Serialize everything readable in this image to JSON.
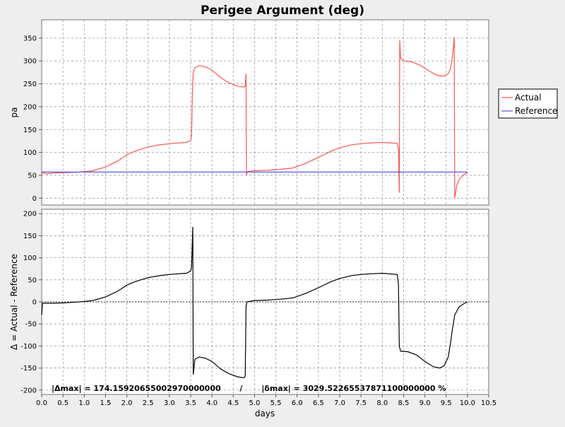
{
  "chart_data": [
    {
      "type": "line",
      "title": "Perigee Argument (deg)",
      "ylabel": "pa",
      "xlabel": "",
      "xlim": [
        0,
        10.5
      ],
      "ylim": [
        -15,
        390
      ],
      "yticks": [
        0,
        50,
        100,
        150,
        200,
        250,
        300,
        350
      ],
      "xticks": [
        0,
        0.5,
        1,
        1.5,
        2,
        2.5,
        3,
        3.5,
        4,
        4.5,
        5,
        5.5,
        6,
        6.5,
        7,
        7.5,
        8,
        8.5,
        9,
        9.5,
        10,
        10.5
      ],
      "grid": true,
      "legend": "right",
      "series": [
        {
          "name": "Actual",
          "color": "#ff5555",
          "points": [
            [
              0,
              50
            ],
            [
              0.02,
              57
            ],
            [
              0.1,
              53
            ],
            [
              0.3,
              55
            ],
            [
              0.6,
              56
            ],
            [
              0.9,
              57
            ],
            [
              1.2,
              60
            ],
            [
              1.5,
              68
            ],
            [
              1.8,
              82
            ],
            [
              2.0,
              95
            ],
            [
              2.2,
              103
            ],
            [
              2.5,
              112
            ],
            [
              2.8,
              117
            ],
            [
              3.1,
              120
            ],
            [
              3.4,
              122
            ],
            [
              3.5,
              126
            ],
            [
              3.52,
              135
            ],
            [
              3.54,
              230
            ],
            [
              3.56,
              275
            ],
            [
              3.6,
              285
            ],
            [
              3.7,
              290
            ],
            [
              3.85,
              287
            ],
            [
              4.0,
              280
            ],
            [
              4.2,
              264
            ],
            [
              4.4,
              252
            ],
            [
              4.6,
              245
            ],
            [
              4.75,
              243
            ],
            [
              4.78,
              245
            ],
            [
              4.8,
              272
            ],
            [
              4.81,
              50
            ],
            [
              4.83,
              58
            ],
            [
              5.0,
              60
            ],
            [
              5.3,
              61
            ],
            [
              5.6,
              63
            ],
            [
              5.9,
              66
            ],
            [
              6.2,
              76
            ],
            [
              6.5,
              89
            ],
            [
              6.8,
              103
            ],
            [
              7.0,
              110
            ],
            [
              7.3,
              117
            ],
            [
              7.6,
              120
            ],
            [
              8.0,
              122
            ],
            [
              8.35,
              120
            ],
            [
              8.38,
              108
            ],
            [
              8.4,
              12
            ],
            [
              8.41,
              345
            ],
            [
              8.43,
              305
            ],
            [
              8.5,
              300
            ],
            [
              8.7,
              298
            ],
            [
              8.9,
              290
            ],
            [
              9.1,
              278
            ],
            [
              9.3,
              268
            ],
            [
              9.45,
              267
            ],
            [
              9.55,
              272
            ],
            [
              9.6,
              283
            ],
            [
              9.65,
              310
            ],
            [
              9.69,
              352
            ],
            [
              9.7,
              0
            ],
            [
              9.75,
              28
            ],
            [
              9.8,
              40
            ],
            [
              9.9,
              50
            ],
            [
              10.0,
              57
            ]
          ]
        },
        {
          "name": "Reference",
          "color": "#5a5adf",
          "points": [
            [
              0,
              57
            ],
            [
              10.0,
              57
            ]
          ]
        }
      ]
    },
    {
      "type": "line",
      "title": "",
      "xlabel": "days",
      "ylabel": "Δ = Actual - Reference",
      "xlim": [
        0,
        10.5
      ],
      "ylim": [
        -210,
        210
      ],
      "yticks": [
        -200,
        -150,
        -100,
        -50,
        0,
        50,
        100,
        150,
        200
      ],
      "xticks": [
        0,
        0.5,
        1,
        1.5,
        2,
        2.5,
        3,
        3.5,
        4,
        4.5,
        5,
        5.5,
        6,
        6.5,
        7,
        7.5,
        8,
        8.5,
        9,
        9.5,
        10,
        10.5
      ],
      "grid": true,
      "zero_line": true,
      "annotation": "|Δmax| = 174.15920655002970000000       /       |δmax| = 3029.52265537871100000000 %",
      "series": [
        {
          "name": "",
          "color": "#000000",
          "points": [
            [
              0,
              -30
            ],
            [
              0.02,
              -3
            ],
            [
              0.3,
              -3
            ],
            [
              0.6,
              -2
            ],
            [
              0.9,
              0
            ],
            [
              1.2,
              3
            ],
            [
              1.5,
              11
            ],
            [
              1.8,
              25
            ],
            [
              2.0,
              38
            ],
            [
              2.2,
              46
            ],
            [
              2.5,
              55
            ],
            [
              2.8,
              60
            ],
            [
              3.1,
              63
            ],
            [
              3.4,
              65
            ],
            [
              3.5,
              70
            ],
            [
              3.52,
              78
            ],
            [
              3.55,
              170
            ],
            [
              3.56,
              -165
            ],
            [
              3.6,
              -130
            ],
            [
              3.7,
              -125
            ],
            [
              3.85,
              -128
            ],
            [
              4.0,
              -135
            ],
            [
              4.2,
              -152
            ],
            [
              4.4,
              -163
            ],
            [
              4.6,
              -170
            ],
            [
              4.75,
              -172
            ],
            [
              4.78,
              -168
            ],
            [
              4.8,
              -10
            ],
            [
              4.82,
              0
            ],
            [
              5.0,
              3
            ],
            [
              5.3,
              4
            ],
            [
              5.6,
              6
            ],
            [
              5.9,
              9
            ],
            [
              6.2,
              19
            ],
            [
              6.5,
              32
            ],
            [
              6.8,
              46
            ],
            [
              7.0,
              53
            ],
            [
              7.3,
              60
            ],
            [
              7.6,
              63
            ],
            [
              8.0,
              65
            ],
            [
              8.35,
              62
            ],
            [
              8.38,
              40
            ],
            [
              8.4,
              -100
            ],
            [
              8.43,
              -112
            ],
            [
              8.6,
              -113
            ],
            [
              8.8,
              -120
            ],
            [
              9.0,
              -135
            ],
            [
              9.2,
              -147
            ],
            [
              9.35,
              -150
            ],
            [
              9.45,
              -145
            ],
            [
              9.55,
              -125
            ],
            [
              9.6,
              -95
            ],
            [
              9.65,
              -60
            ],
            [
              9.7,
              -30
            ],
            [
              9.8,
              -12
            ],
            [
              9.9,
              -5
            ],
            [
              10.0,
              0
            ]
          ]
        }
      ]
    }
  ]
}
